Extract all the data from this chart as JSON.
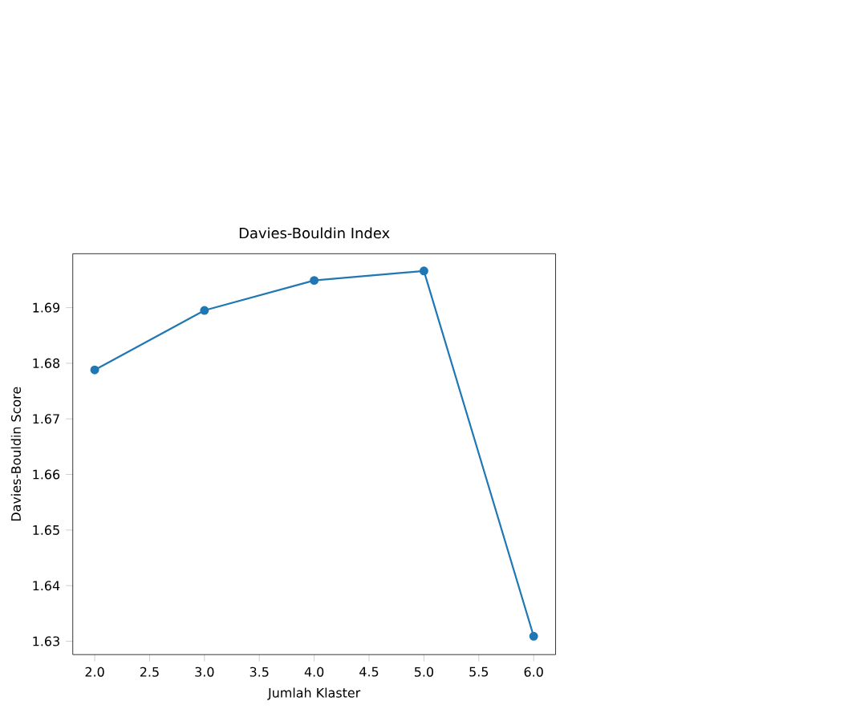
{
  "chart_data": {
    "type": "line",
    "title": "Davies-Bouldin Index",
    "xlabel": "Jumlah Klaster",
    "ylabel": "Davies-Bouldin Score",
    "x": [
      2,
      3,
      4,
      5,
      6
    ],
    "series": [
      {
        "color": "#1f77b4",
        "values": [
          1.6788,
          1.6895,
          1.6949,
          1.6966,
          1.6309
        ]
      }
    ],
    "marker": "circle",
    "line_style": "solid",
    "xlim": [
      1.8,
      6.2
    ],
    "xticks": [
      {
        "value": 2,
        "label": "2.0"
      },
      {
        "value": 2.5,
        "label": "2.5"
      },
      {
        "value": 3,
        "label": "3.0"
      },
      {
        "value": 3.5,
        "label": "3.5"
      },
      {
        "value": 4,
        "label": "4.0"
      },
      {
        "value": 4.5,
        "label": "4.5"
      },
      {
        "value": 5,
        "label": "5.0"
      },
      {
        "value": 5.5,
        "label": "5.5"
      },
      {
        "value": 6,
        "label": "6.0"
      }
    ],
    "ylim": [
      1.6276,
      1.6997
    ],
    "yticks": [
      1.63,
      1.64,
      1.65,
      1.66,
      1.67,
      1.68,
      1.69
    ]
  }
}
